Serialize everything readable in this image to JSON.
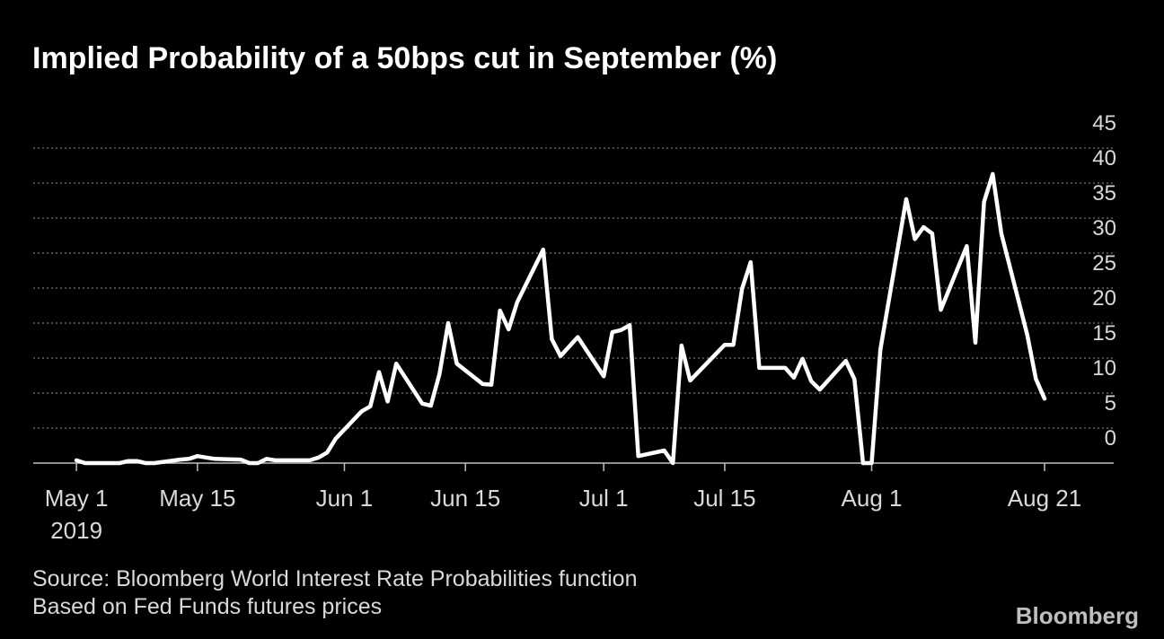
{
  "chart_data": {
    "type": "line",
    "title": "Implied Probability of a 50bps cut in September (%)",
    "x": [
      "2019-05-01",
      "2019-05-02",
      "2019-05-03",
      "2019-05-06",
      "2019-05-07",
      "2019-05-08",
      "2019-05-09",
      "2019-05-10",
      "2019-05-13",
      "2019-05-14",
      "2019-05-15",
      "2019-05-16",
      "2019-05-17",
      "2019-05-20",
      "2019-05-21",
      "2019-05-22",
      "2019-05-23",
      "2019-05-24",
      "2019-05-28",
      "2019-05-29",
      "2019-05-30",
      "2019-05-31",
      "2019-06-03",
      "2019-06-04",
      "2019-06-05",
      "2019-06-06",
      "2019-06-07",
      "2019-06-10",
      "2019-06-11",
      "2019-06-12",
      "2019-06-13",
      "2019-06-14",
      "2019-06-17",
      "2019-06-18",
      "2019-06-19",
      "2019-06-20",
      "2019-06-21",
      "2019-06-24",
      "2019-06-25",
      "2019-06-26",
      "2019-06-28",
      "2019-07-01",
      "2019-07-02",
      "2019-07-03",
      "2019-07-04",
      "2019-07-05",
      "2019-07-08",
      "2019-07-09",
      "2019-07-10",
      "2019-07-11",
      "2019-07-15",
      "2019-07-16",
      "2019-07-17",
      "2019-07-18",
      "2019-07-19",
      "2019-07-22",
      "2019-07-23",
      "2019-07-24",
      "2019-07-25",
      "2019-07-26",
      "2019-07-29",
      "2019-07-30",
      "2019-07-31",
      "2019-08-01",
      "2019-08-02",
      "2019-08-05",
      "2019-08-06",
      "2019-08-07",
      "2019-08-08",
      "2019-08-09",
      "2019-08-12",
      "2019-08-13",
      "2019-08-14",
      "2019-08-15",
      "2019-08-16",
      "2019-08-19",
      "2019-08-20",
      "2019-08-21"
    ],
    "values": [
      0.4,
      0,
      0,
      0,
      0.3,
      0.3,
      0,
      0,
      0.5,
      0.6,
      1.0,
      0.8,
      0.6,
      0.5,
      0,
      0,
      0.6,
      0.4,
      0.4,
      0.8,
      1.5,
      3.5,
      7.4,
      8.1,
      13,
      8.8,
      14.2,
      8.5,
      8.2,
      12.7,
      20,
      14.2,
      11.3,
      11.2,
      21.8,
      19.1,
      23,
      30.5,
      17.7,
      15.3,
      18,
      12.4,
      18.7,
      19,
      19.7,
      1,
      1.8,
      0,
      16.8,
      11.8,
      16.9,
      16.9,
      24.9,
      28.7,
      13.6,
      13.6,
      12.2,
      14.9,
      11.7,
      10.5,
      14.6,
      12,
      0,
      0,
      16.2,
      37.7,
      32,
      33.7,
      32.8,
      21.9,
      31,
      17.2,
      37.3,
      41.3,
      32.8,
      18.3,
      12,
      9.2
    ],
    "color": "#ffffff",
    "xlim": [
      "2019-04-26",
      "2019-08-29"
    ],
    "xticks": [
      {
        "value": "2019-05-01",
        "label": "May 1"
      },
      {
        "value": "2019-05-15",
        "label": "May 15"
      },
      {
        "value": "2019-06-01",
        "label": "Jun 1"
      },
      {
        "value": "2019-06-15",
        "label": "Jun 15"
      },
      {
        "value": "2019-07-01",
        "label": "Jul 1"
      },
      {
        "value": "2019-07-15",
        "label": "Jul 15"
      },
      {
        "value": "2019-08-01",
        "label": "Aug 1"
      },
      {
        "value": "2019-08-21",
        "label": "Aug 21"
      }
    ],
    "x_year_label": "2019",
    "ylim": [
      0,
      47
    ],
    "yticks": [
      0,
      5,
      10,
      15,
      20,
      25,
      30,
      35,
      40,
      45
    ],
    "grid": true,
    "source": [
      "Source: Bloomberg World Interest Rate Probabilities function",
      "Based on Fed Funds futures prices"
    ],
    "brand": "Bloomberg"
  }
}
